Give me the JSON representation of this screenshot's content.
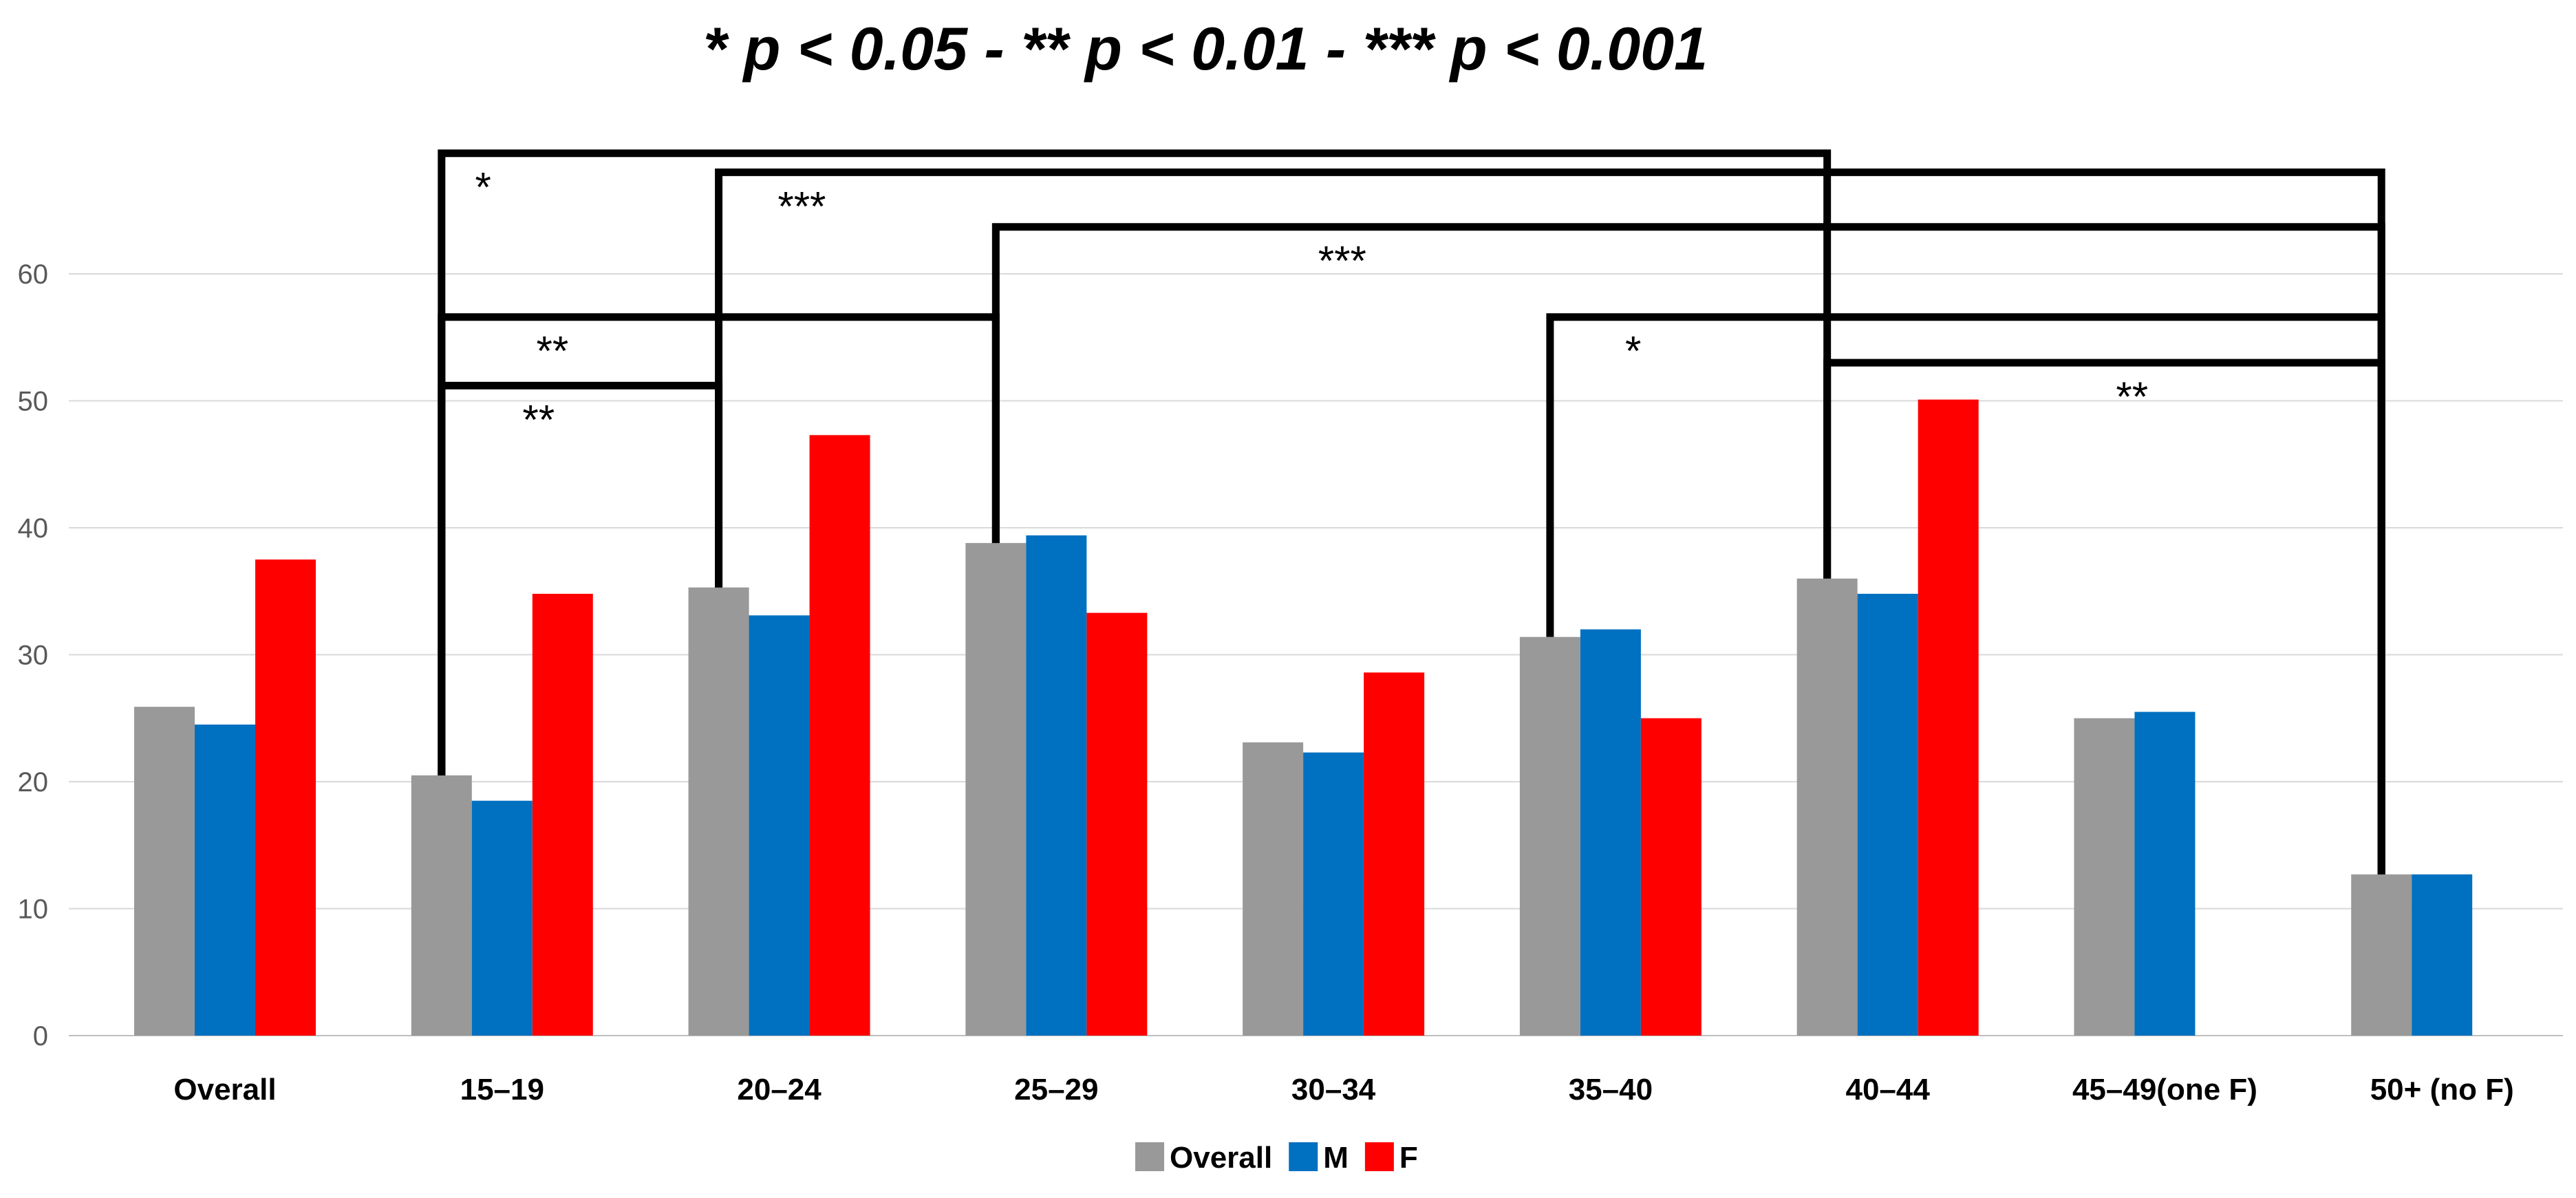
{
  "chart_data": {
    "type": "bar",
    "title": "* p < 0.05 - ** p < 0.01 - *** p < 0.001",
    "xlabel": "",
    "ylabel": "",
    "ylim": [
      0,
      60
    ],
    "yticks": [
      0,
      10,
      20,
      30,
      40,
      50,
      60
    ],
    "grid": true,
    "legend_position": "bottom-center",
    "categories": [
      "Overall",
      "15–19",
      "20–24",
      "25–29",
      "30–34",
      "35–40",
      "40–44",
      "45–49(one F)",
      "50+ (no F)"
    ],
    "series": [
      {
        "name": "Overall",
        "color": "#999999",
        "values": [
          25.9,
          20.5,
          35.3,
          38.8,
          23.1,
          31.4,
          36.0,
          25.0,
          12.7
        ]
      },
      {
        "name": "M",
        "color": "#0070C0",
        "values": [
          24.5,
          18.5,
          33.1,
          39.4,
          22.3,
          32.0,
          34.8,
          25.5,
          12.7
        ]
      },
      {
        "name": "F",
        "color": "#FF0000",
        "values": [
          37.5,
          34.8,
          47.3,
          33.3,
          28.6,
          25.0,
          50.1,
          null,
          null
        ]
      }
    ],
    "significance_brackets": [
      {
        "from": "15–19",
        "to": "40–44",
        "label": "*",
        "level": 69.5
      },
      {
        "from": "20–24",
        "to": "50+ (no F)",
        "label": "***",
        "level": 68
      },
      {
        "from": "25–29",
        "to": "50+ (no F)",
        "label": "***",
        "level": 63.7
      },
      {
        "from": "15–19",
        "to": "25–29",
        "label": "**",
        "level": 56.6
      },
      {
        "from": "35–40",
        "to": "50+ (no F)",
        "label": "*",
        "level": 56.6
      },
      {
        "from": "15–19",
        "to": "20–24",
        "label": "**",
        "level": 51.2
      },
      {
        "from": "40–44",
        "to": "50+ (no F)",
        "label": "**",
        "level": 53
      }
    ]
  }
}
